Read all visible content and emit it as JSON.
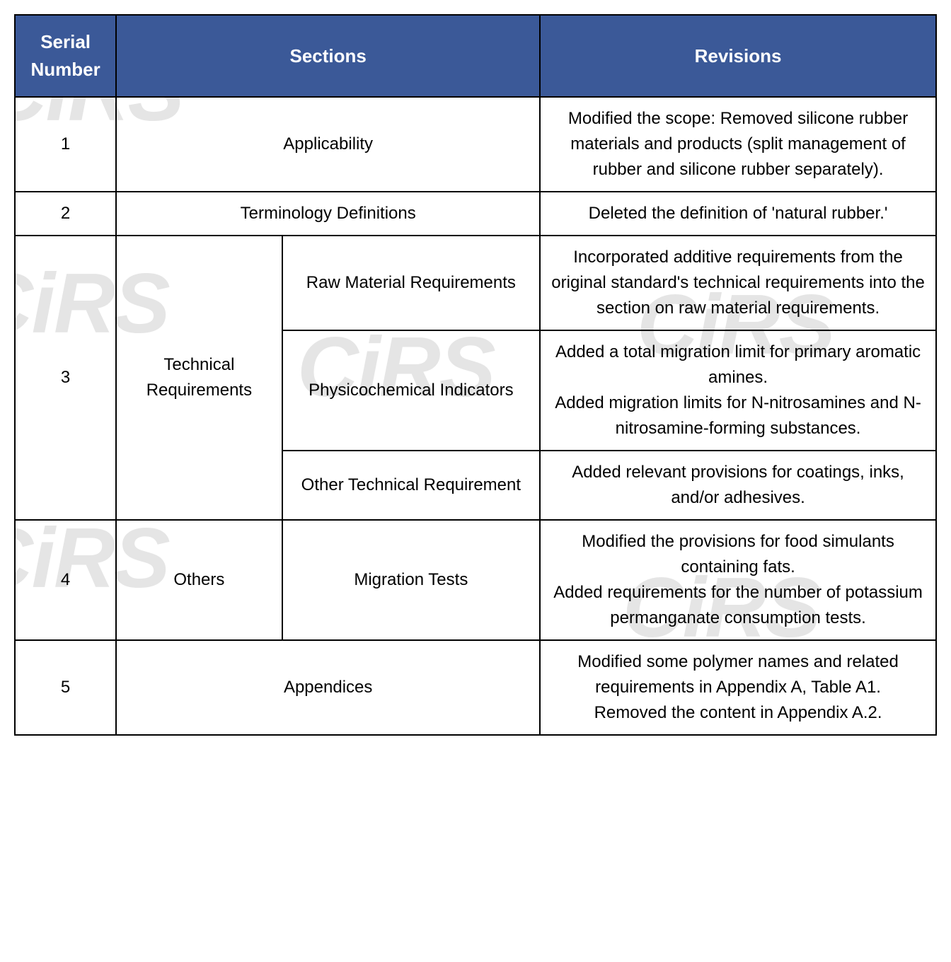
{
  "table": {
    "header": {
      "serial": "Serial Number",
      "sections": "Sections",
      "revisions": "Revisions"
    },
    "header_bg": "#3b5998",
    "header_fg": "#ffffff",
    "border_color": "#000000",
    "cell_fg": "#000000",
    "background": "#ffffff",
    "watermark_text": "CiRS",
    "watermark_color": "#e5e5e5",
    "font_size_cell": 24,
    "font_size_header": 26,
    "rows": {
      "r1": {
        "serial": "1",
        "section": "Applicability",
        "revision": "Modified the scope: Removed silicone rubber materials and products (split management of rubber and silicone rubber separately)."
      },
      "r2": {
        "serial": "2",
        "section": "Terminology Definitions",
        "revision": "Deleted the definition of 'natural rubber.'"
      },
      "r3": {
        "serial": "3",
        "section_main": "Technical Requirements",
        "sub_a": {
          "section": "Raw Material Requirements",
          "revision": "Incorporated additive requirements from the original standard's technical requirements into the section on raw material requirements."
        },
        "sub_b": {
          "section": "Physicochemical Indicators",
          "revision": "Added a total migration limit for primary aromatic amines.\nAdded migration limits for N-nitrosamines and N-nitrosamine-forming substances."
        },
        "sub_c": {
          "section": "Other Technical Requirement",
          "revision": "Added relevant provisions for coatings, inks, and/or adhesives."
        }
      },
      "r4": {
        "serial": "4",
        "section_main": "Others",
        "section_sub": "Migration Tests",
        "revision": "Modified the provisions for food simulants containing fats.\nAdded requirements for the number of potassium permanganate consumption tests."
      },
      "r5": {
        "serial": "5",
        "section": "Appendices",
        "revision": "Modified some polymer names and related requirements in Appendix A, Table A1.\nRemoved the content in Appendix A.2."
      }
    }
  }
}
